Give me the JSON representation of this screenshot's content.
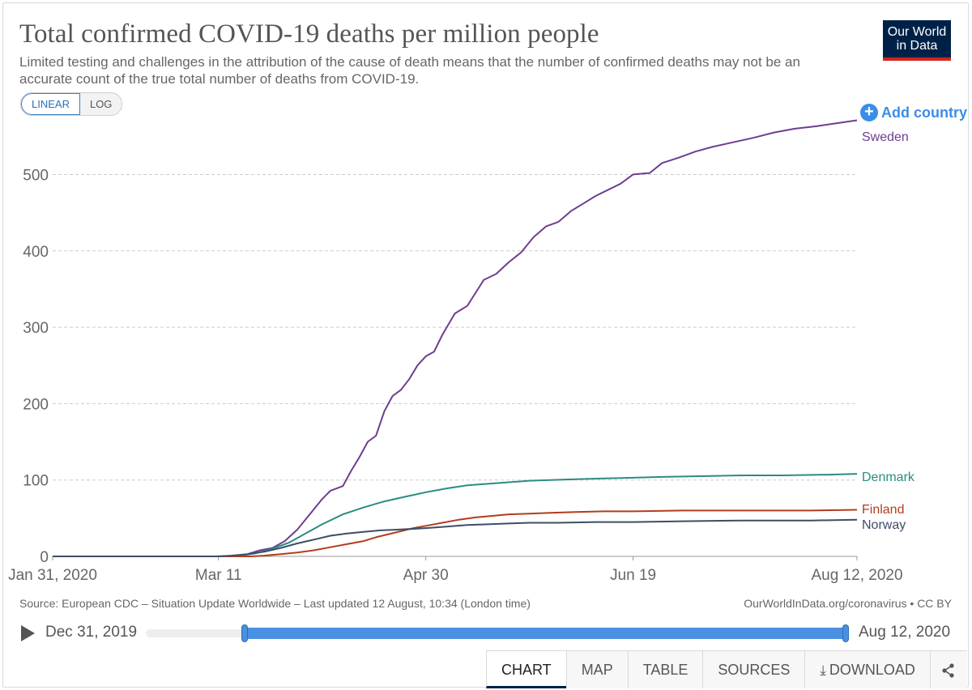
{
  "header": {
    "title": "Total confirmed COVID-19 deaths per million people",
    "subtitle": "Limited testing and challenges in the attribution of the cause of death means that the number of confirmed deaths may not be an accurate count of the true total number of deaths from COVID-19.",
    "logo_line1": "Our World",
    "logo_line2": "in Data"
  },
  "controls": {
    "linear_label": "LINEAR",
    "log_label": "LOG",
    "active_scale": "linear",
    "add_country_label": "Add country",
    "add_country_icon": "plus-circle-icon"
  },
  "chart_data": {
    "type": "line",
    "title": "Total confirmed COVID-19 deaths per million people",
    "x_tick_labels": [
      "Jan 31, 2020",
      "Mar 11",
      "Apr 30",
      "Jun 19",
      "Aug 12, 2020"
    ],
    "x_tick_dates": [
      "2020-01-31",
      "2020-03-11",
      "2020-04-30",
      "2020-06-19",
      "2020-08-12"
    ],
    "xlim": [
      "2020-01-31",
      "2020-08-12"
    ],
    "y_ticks": [
      0,
      100,
      200,
      300,
      400,
      500
    ],
    "ylim": [
      0,
      580
    ],
    "grid": "horizontal dashed",
    "legend": "line-end labels",
    "series": [
      {
        "name": "Sweden",
        "color": "#6d3e91",
        "points": [
          [
            "2020-01-31",
            0
          ],
          [
            "2020-03-10",
            0
          ],
          [
            "2020-03-15",
            0.5
          ],
          [
            "2020-03-18",
            3
          ],
          [
            "2020-03-21",
            8
          ],
          [
            "2020-03-24",
            11
          ],
          [
            "2020-03-27",
            20
          ],
          [
            "2020-03-30",
            35
          ],
          [
            "2020-04-02",
            55
          ],
          [
            "2020-04-05",
            75
          ],
          [
            "2020-04-07",
            86
          ],
          [
            "2020-04-10",
            92
          ],
          [
            "2020-04-12",
            112
          ],
          [
            "2020-04-14",
            130
          ],
          [
            "2020-04-16",
            150
          ],
          [
            "2020-04-18",
            158
          ],
          [
            "2020-04-20",
            190
          ],
          [
            "2020-04-22",
            210
          ],
          [
            "2020-04-24",
            218
          ],
          [
            "2020-04-26",
            232
          ],
          [
            "2020-04-28",
            250
          ],
          [
            "2020-04-30",
            262
          ],
          [
            "2020-05-02",
            268
          ],
          [
            "2020-05-04",
            290
          ],
          [
            "2020-05-07",
            318
          ],
          [
            "2020-05-10",
            328
          ],
          [
            "2020-05-12",
            345
          ],
          [
            "2020-05-14",
            362
          ],
          [
            "2020-05-17",
            370
          ],
          [
            "2020-05-20",
            385
          ],
          [
            "2020-05-23",
            398
          ],
          [
            "2020-05-26",
            418
          ],
          [
            "2020-05-29",
            432
          ],
          [
            "2020-06-01",
            438
          ],
          [
            "2020-06-04",
            452
          ],
          [
            "2020-06-07",
            462
          ],
          [
            "2020-06-10",
            472
          ],
          [
            "2020-06-13",
            480
          ],
          [
            "2020-06-16",
            488
          ],
          [
            "2020-06-19",
            500
          ],
          [
            "2020-06-23",
            502
          ],
          [
            "2020-06-26",
            515
          ],
          [
            "2020-06-30",
            522
          ],
          [
            "2020-07-04",
            530
          ],
          [
            "2020-07-08",
            536
          ],
          [
            "2020-07-13",
            542
          ],
          [
            "2020-07-18",
            548
          ],
          [
            "2020-07-23",
            555
          ],
          [
            "2020-07-28",
            560
          ],
          [
            "2020-08-02",
            563
          ],
          [
            "2020-08-07",
            567
          ],
          [
            "2020-08-12",
            571
          ]
        ]
      },
      {
        "name": "Denmark",
        "color": "#2b8c82",
        "points": [
          [
            "2020-01-31",
            0
          ],
          [
            "2020-03-12",
            0
          ],
          [
            "2020-03-16",
            1
          ],
          [
            "2020-03-20",
            4
          ],
          [
            "2020-03-24",
            10
          ],
          [
            "2020-03-28",
            18
          ],
          [
            "2020-04-01",
            30
          ],
          [
            "2020-04-05",
            42
          ],
          [
            "2020-04-10",
            55
          ],
          [
            "2020-04-15",
            64
          ],
          [
            "2020-04-20",
            72
          ],
          [
            "2020-04-25",
            78
          ],
          [
            "2020-04-30",
            84
          ],
          [
            "2020-05-05",
            89
          ],
          [
            "2020-05-10",
            93
          ],
          [
            "2020-05-15",
            95
          ],
          [
            "2020-05-20",
            97
          ],
          [
            "2020-05-25",
            99
          ],
          [
            "2020-05-30",
            100
          ],
          [
            "2020-06-05",
            101
          ],
          [
            "2020-06-12",
            102
          ],
          [
            "2020-06-19",
            103
          ],
          [
            "2020-06-26",
            104
          ],
          [
            "2020-07-05",
            105
          ],
          [
            "2020-07-15",
            106
          ],
          [
            "2020-07-25",
            106
          ],
          [
            "2020-08-05",
            107
          ],
          [
            "2020-08-12",
            108
          ]
        ]
      },
      {
        "name": "Finland",
        "color": "#b13d1e",
        "points": [
          [
            "2020-01-31",
            0
          ],
          [
            "2020-03-19",
            0
          ],
          [
            "2020-03-22",
            1
          ],
          [
            "2020-03-26",
            3
          ],
          [
            "2020-03-30",
            5
          ],
          [
            "2020-04-03",
            8
          ],
          [
            "2020-04-07",
            12
          ],
          [
            "2020-04-11",
            16
          ],
          [
            "2020-04-15",
            20
          ],
          [
            "2020-04-18",
            25
          ],
          [
            "2020-04-21",
            29
          ],
          [
            "2020-04-24",
            33
          ],
          [
            "2020-04-27",
            37
          ],
          [
            "2020-04-30",
            40
          ],
          [
            "2020-05-04",
            44
          ],
          [
            "2020-05-08",
            48
          ],
          [
            "2020-05-12",
            51
          ],
          [
            "2020-05-16",
            53
          ],
          [
            "2020-05-20",
            55
          ],
          [
            "2020-05-25",
            56
          ],
          [
            "2020-05-30",
            57
          ],
          [
            "2020-06-05",
            58
          ],
          [
            "2020-06-12",
            59
          ],
          [
            "2020-06-19",
            59
          ],
          [
            "2020-07-01",
            60
          ],
          [
            "2020-07-15",
            60
          ],
          [
            "2020-08-01",
            60
          ],
          [
            "2020-08-12",
            61
          ]
        ]
      },
      {
        "name": "Norway",
        "color": "#3c4e66",
        "points": [
          [
            "2020-01-31",
            0
          ],
          [
            "2020-03-11",
            0
          ],
          [
            "2020-03-14",
            1
          ],
          [
            "2020-03-18",
            3
          ],
          [
            "2020-03-22",
            6
          ],
          [
            "2020-03-26",
            11
          ],
          [
            "2020-03-30",
            17
          ],
          [
            "2020-04-03",
            22
          ],
          [
            "2020-04-07",
            27
          ],
          [
            "2020-04-11",
            30
          ],
          [
            "2020-04-15",
            32
          ],
          [
            "2020-04-19",
            34
          ],
          [
            "2020-04-23",
            35
          ],
          [
            "2020-04-27",
            36
          ],
          [
            "2020-04-30",
            37
          ],
          [
            "2020-05-05",
            39
          ],
          [
            "2020-05-10",
            41
          ],
          [
            "2020-05-15",
            42
          ],
          [
            "2020-05-20",
            43
          ],
          [
            "2020-05-25",
            44
          ],
          [
            "2020-06-01",
            44
          ],
          [
            "2020-06-10",
            45
          ],
          [
            "2020-06-19",
            45
          ],
          [
            "2020-07-01",
            46
          ],
          [
            "2020-07-15",
            47
          ],
          [
            "2020-08-01",
            47
          ],
          [
            "2020-08-12",
            48
          ]
        ]
      }
    ]
  },
  "footer": {
    "source": "Source: European CDC – Situation Update Worldwide – Last updated 12 August, 10:34 (London time)",
    "credit": "OurWorldInData.org/coronavirus • CC BY"
  },
  "timeline": {
    "start_label": "Dec 31, 2019",
    "end_label": "Aug 12, 2020",
    "play_icon": "play-icon",
    "range_start_date": "2020-01-31",
    "range_end_date": "2020-08-12"
  },
  "tabs": [
    {
      "label": "CHART",
      "active": true
    },
    {
      "label": "MAP",
      "active": false
    },
    {
      "label": "TABLE",
      "active": false
    },
    {
      "label": "SOURCES",
      "active": false
    },
    {
      "label": "DOWNLOAD",
      "active": false,
      "icon": "download-icon"
    }
  ],
  "share_icon": "share-icon"
}
